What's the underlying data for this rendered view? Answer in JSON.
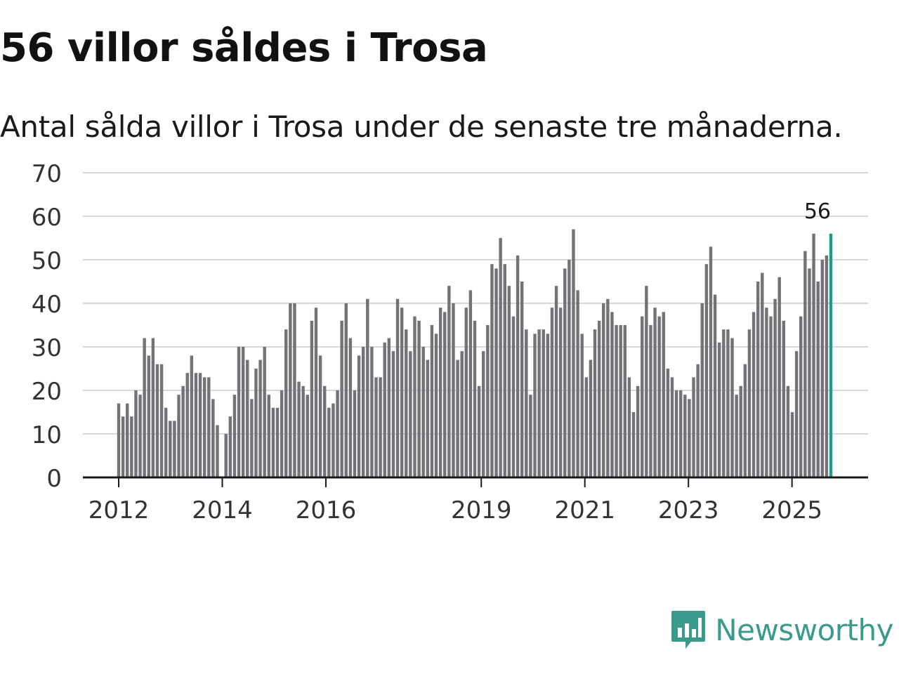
{
  "title": "56 villor såldes i Trosa",
  "subtitle": "Antal sålda villor i Trosa under de senaste tre månaderna.",
  "brand": {
    "name": "Newsworthy",
    "icon": "newsworthy-chart-icon",
    "color": "#3a9a8c"
  },
  "colors": {
    "bar": "#737276",
    "highlight": "#1a9c8a",
    "grid": "#d9d9d9",
    "axis": "#1a1a1a",
    "text": "#333333"
  },
  "chart_data": {
    "type": "bar",
    "title": "56 villor såldes i Trosa",
    "subtitle": "Antal sålda villor i Trosa under de senaste tre månaderna.",
    "xlabel": "",
    "ylabel": "",
    "ylim": [
      0,
      70
    ],
    "yticks": [
      0,
      10,
      20,
      30,
      40,
      50,
      60,
      70
    ],
    "grid": true,
    "x_start": 2012.0,
    "x_end": 2025.75,
    "xticks": [
      {
        "label": "2012",
        "value": 2012
      },
      {
        "label": "2014",
        "value": 2014
      },
      {
        "label": "2016",
        "value": 2016
      },
      {
        "label": "2019",
        "value": 2019
      },
      {
        "label": "2021",
        "value": 2021
      },
      {
        "label": "2023",
        "value": 2023
      },
      {
        "label": "2025",
        "value": 2025
      }
    ],
    "values": [
      17,
      14,
      17,
      14,
      20,
      19,
      32,
      28,
      32,
      26,
      26,
      16,
      13,
      13,
      19,
      21,
      24,
      28,
      24,
      24,
      23,
      23,
      18,
      12,
      0,
      10,
      14,
      19,
      30,
      30,
      27,
      18,
      25,
      27,
      30,
      19,
      16,
      16,
      20,
      34,
      40,
      40,
      22,
      21,
      19,
      36,
      39,
      28,
      21,
      16,
      17,
      20,
      36,
      40,
      32,
      20,
      28,
      30,
      41,
      30,
      23,
      23,
      31,
      32,
      29,
      41,
      39,
      34,
      29,
      37,
      36,
      30,
      27,
      35,
      33,
      39,
      38,
      44,
      40,
      27,
      29,
      39,
      43,
      36,
      21,
      29,
      35,
      49,
      48,
      55,
      49,
      44,
      37,
      51,
      45,
      34,
      19,
      33,
      34,
      34,
      33,
      39,
      44,
      39,
      48,
      50,
      57,
      43,
      33,
      23,
      27,
      34,
      36,
      40,
      41,
      38,
      35,
      35,
      35,
      23,
      15,
      21,
      37,
      44,
      35,
      39,
      37,
      38,
      25,
      23,
      20,
      20,
      19,
      18,
      23,
      26,
      40,
      49,
      53,
      42,
      31,
      34,
      34,
      32,
      19,
      21,
      26,
      34,
      38,
      45,
      47,
      39,
      37,
      41,
      46,
      36,
      21,
      15,
      29,
      37,
      52,
      48,
      56,
      45,
      50,
      51,
      56
    ],
    "highlight": {
      "index": 166,
      "value": 56,
      "label": "56"
    }
  }
}
